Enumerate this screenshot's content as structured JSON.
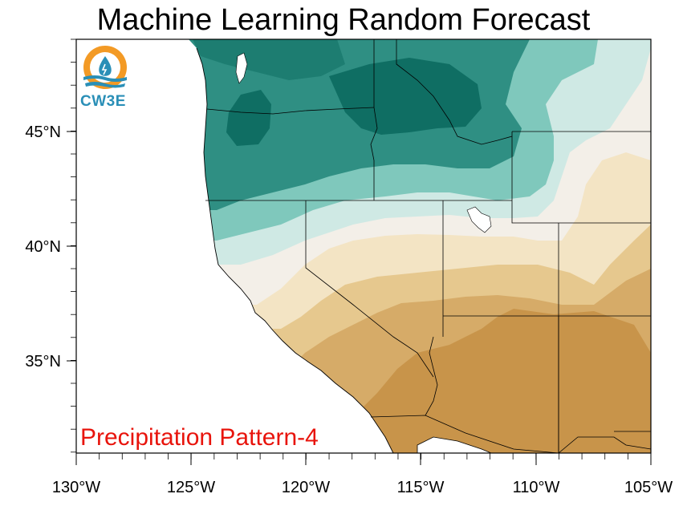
{
  "title": "Machine Learning Random Forecast",
  "pattern_label": "Precipitation Pattern-4",
  "logo": {
    "text": "CW3E",
    "icon": "water-drop-sun-icon"
  },
  "axes": {
    "x_ticks": [
      "130°W",
      "125°W",
      "120°W",
      "115°W",
      "110°W",
      "105°W"
    ],
    "y_ticks": [
      "45°N",
      "40°N",
      "35°N"
    ]
  },
  "colors": {
    "wet_dark": "#0f6e63",
    "wet_mid": "#2f8f83",
    "wet_light": "#7fc8bc",
    "wet_pale": "#cfe9e4",
    "neutral": "#f3efe8",
    "dry_pale": "#f3e4c4",
    "dry_light": "#e6c88e",
    "dry_mid": "#d6ab68",
    "dry_dark": "#c8944a",
    "label_red": "#e8140c",
    "logo_blue": "#2a8fb7",
    "logo_orange": "#f39a25"
  }
}
